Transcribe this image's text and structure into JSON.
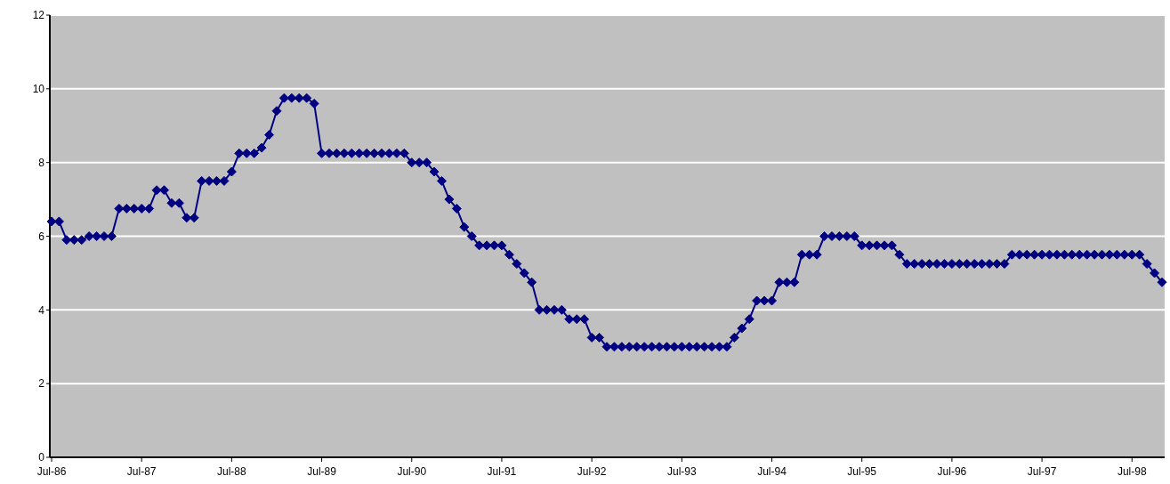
{
  "chart_data": {
    "type": "line",
    "categories": [
      "Jul-86",
      null,
      null,
      null,
      null,
      null,
      null,
      null,
      null,
      null,
      null,
      null,
      "Jul-87",
      null,
      null,
      null,
      null,
      null,
      null,
      null,
      null,
      null,
      null,
      null,
      "Jul-88",
      null,
      null,
      null,
      null,
      null,
      null,
      null,
      null,
      null,
      null,
      null,
      "Jul-89",
      null,
      null,
      null,
      null,
      null,
      null,
      null,
      null,
      null,
      null,
      null,
      "Jul-90",
      null,
      null,
      null,
      null,
      null,
      null,
      null,
      null,
      null,
      null,
      null,
      "Jul-91",
      null,
      null,
      null,
      null,
      null,
      null,
      null,
      null,
      null,
      null,
      null,
      "Jul-92",
      null,
      null,
      null,
      null,
      null,
      null,
      null,
      null,
      null,
      null,
      null,
      "Jul-93",
      null,
      null,
      null,
      null,
      null,
      null,
      null,
      null,
      null,
      null,
      null,
      "Jul-94",
      null,
      null,
      null,
      null,
      null,
      null,
      null,
      null,
      null,
      null,
      null,
      "Jul-95",
      null,
      null,
      null,
      null,
      null,
      null,
      null,
      null,
      null,
      null,
      null,
      "Jul-96",
      null,
      null,
      null,
      null,
      null,
      null,
      null,
      null,
      null,
      null,
      null,
      "Jul-97",
      null,
      null,
      null,
      null,
      null,
      null,
      null,
      null,
      null,
      null,
      null,
      "Jul-98",
      null,
      null,
      null,
      null
    ],
    "series": [
      {
        "color": "#000080",
        "values": [
          6.4,
          6.4,
          5.9,
          5.9,
          5.9,
          6,
          6,
          6,
          6,
          6.75,
          6.75,
          6.75,
          6.75,
          6.75,
          7.25,
          7.25,
          6.9,
          6.9,
          6.5,
          6.5,
          7.5,
          7.5,
          7.5,
          7.5,
          7.75,
          8.25,
          8.25,
          8.25,
          8.4,
          8.75,
          9.4,
          9.75,
          9.75,
          9.75,
          9.75,
          9.6,
          8.25,
          8.25,
          8.25,
          8.25,
          8.25,
          8.25,
          8.25,
          8.25,
          8.25,
          8.25,
          8.25,
          8.25,
          8,
          8,
          8,
          7.75,
          7.5,
          7,
          6.75,
          6.25,
          6,
          5.75,
          5.75,
          5.75,
          5.75,
          5.5,
          5.25,
          5,
          4.75,
          4,
          4,
          4,
          4,
          3.75,
          3.75,
          3.75,
          3.25,
          3.25,
          3,
          3,
          3,
          3,
          3,
          3,
          3,
          3,
          3,
          3,
          3,
          3,
          3,
          3,
          3,
          3,
          3,
          3.25,
          3.5,
          3.75,
          4.25,
          4.25,
          4.25,
          4.75,
          4.75,
          4.75,
          5.5,
          5.5,
          5.5,
          6,
          6,
          6,
          6,
          6,
          5.75,
          5.75,
          5.75,
          5.75,
          5.75,
          5.5,
          5.25,
          5.25,
          5.25,
          5.25,
          5.25,
          5.25,
          5.25,
          5.25,
          5.25,
          5.25,
          5.25,
          5.25,
          5.25,
          5.25,
          5.5,
          5.5,
          5.5,
          5.5,
          5.5,
          5.5,
          5.5,
          5.5,
          5.5,
          5.5,
          5.5,
          5.5,
          5.5,
          5.5,
          5.5,
          5.5,
          5.5,
          5.5,
          5.25,
          5,
          4.75
        ]
      }
    ],
    "ylim": [
      0,
      12
    ],
    "yticks": [
      0,
      2,
      4,
      6,
      8,
      10,
      12
    ],
    "grid": "y",
    "legend": false,
    "marker": "diamond",
    "line_style": "solid"
  }
}
